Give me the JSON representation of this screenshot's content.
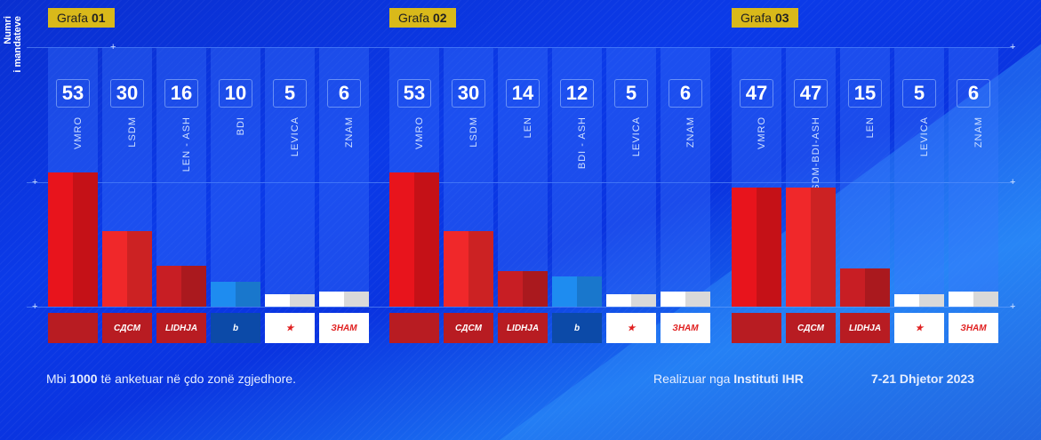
{
  "y_axis_label": [
    "Numri",
    "i mandateve"
  ],
  "chart_data": [
    {
      "type": "bar",
      "title_prefix": "Grafa",
      "title_num": "01",
      "categories": [
        "VMRO",
        "LSDM",
        "LEN - ASH",
        "BDI",
        "LEVICA",
        "ZNAM"
      ],
      "values": [
        53,
        30,
        16,
        10,
        5,
        6
      ],
      "colors": [
        "#e8141c",
        "#f0282a",
        "#c81e24",
        "#1e8cf0",
        "#ffffff",
        "#ffffff"
      ],
      "logos": [
        "",
        "СДСМ",
        "LIDHJA",
        "b",
        "★",
        "ЗНАМ"
      ]
    },
    {
      "type": "bar",
      "title_prefix": "Grafa",
      "title_num": "02",
      "categories": [
        "VMRO",
        "LSDM",
        "LEN",
        "BDI - ASH",
        "LEVICA",
        "ZNAM"
      ],
      "values": [
        53,
        30,
        14,
        12,
        5,
        6
      ],
      "colors": [
        "#e8141c",
        "#f0282a",
        "#c81e24",
        "#1e8cf0",
        "#ffffff",
        "#ffffff"
      ],
      "logos": [
        "",
        "СДСМ",
        "LIDHJA",
        "b",
        "★",
        "ЗНАМ"
      ]
    },
    {
      "type": "bar",
      "title_prefix": "Grafa",
      "title_num": "03",
      "categories": [
        "VMRO",
        "LSDM-BDI-ASH",
        "LEN",
        "LEVICA",
        "ZNAM"
      ],
      "values": [
        47,
        47,
        15,
        5,
        6
      ],
      "colors": [
        "#e8141c",
        "#f0282a",
        "#c81e24",
        "#ffffff",
        "#ffffff"
      ],
      "logos": [
        "",
        "СДСМ",
        "LIDHJA",
        "★",
        "ЗНАМ"
      ]
    }
  ],
  "footer": {
    "left_pre": "Mbi ",
    "left_bold": "1000",
    "left_post": " të anketuar në çdo zonë zgjedhore.",
    "right_pre": "Realizuar nga ",
    "right_bold": "Instituti IHR",
    "date": "7-21 Dhjetor 2023"
  }
}
